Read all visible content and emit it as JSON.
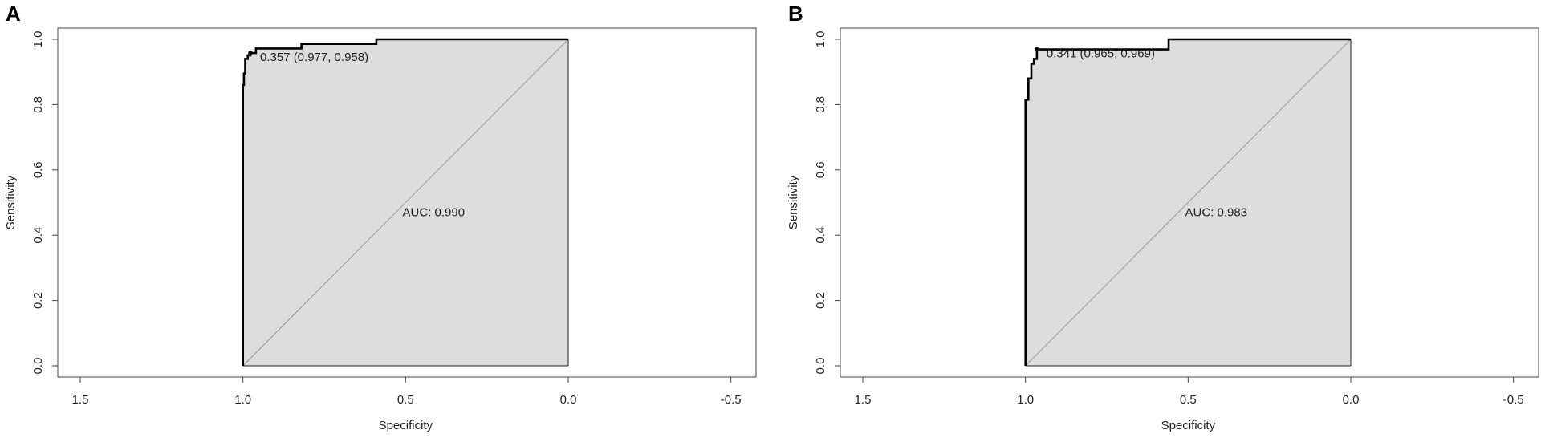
{
  "chart_data": [
    {
      "panel": "A",
      "type": "line",
      "xlabel": "Specificity",
      "ylabel": "Sensitivity",
      "xlim": [
        1.5,
        -0.5
      ],
      "ylim": [
        0,
        1
      ],
      "x_ticks": [
        1.5,
        1.0,
        0.5,
        0.0,
        -0.5
      ],
      "x_tick_labels": [
        "1.5",
        "1.0",
        "0.5",
        "0.0",
        "-0.5"
      ],
      "y_ticks": [
        0.0,
        0.2,
        0.4,
        0.6,
        0.8,
        1.0
      ],
      "y_tick_labels": [
        "0.0",
        "0.2",
        "0.4",
        "0.6",
        "0.8",
        "1.0"
      ],
      "roc_curve": {
        "specificity": [
          1.0,
          1.0,
          0.997,
          0.997,
          0.993,
          0.993,
          0.985,
          0.985,
          0.977,
          0.977,
          0.96,
          0.96,
          0.82,
          0.82,
          0.59,
          0.59,
          0.0
        ],
        "sensitivity": [
          0.0,
          0.86,
          0.86,
          0.895,
          0.895,
          0.94,
          0.94,
          0.951,
          0.951,
          0.958,
          0.958,
          0.972,
          0.972,
          0.986,
          0.986,
          1.0,
          1.0
        ]
      },
      "threshold_point": {
        "specificity": 0.977,
        "sensitivity": 0.958,
        "label": "0.357 (0.977, 0.958)"
      },
      "auc_label": "AUC: 0.990",
      "auc_label_position": [
        0.5,
        0.47
      ],
      "shading": true,
      "reference_diagonal": true
    },
    {
      "panel": "B",
      "type": "line",
      "xlabel": "Specificity",
      "ylabel": "Sensitivity",
      "xlim": [
        1.5,
        -0.5
      ],
      "ylim": [
        0,
        1
      ],
      "x_ticks": [
        1.5,
        1.0,
        0.5,
        0.0,
        -0.5
      ],
      "x_tick_labels": [
        "1.5",
        "1.0",
        "0.5",
        "0.0",
        "-0.5"
      ],
      "y_ticks": [
        0.0,
        0.2,
        0.4,
        0.6,
        0.8,
        1.0
      ],
      "y_tick_labels": [
        "0.0",
        "0.2",
        "0.4",
        "0.6",
        "0.8",
        "1.0"
      ],
      "roc_curve": {
        "specificity": [
          1.0,
          1.0,
          0.991,
          0.991,
          0.982,
          0.982,
          0.974,
          0.974,
          0.965,
          0.965,
          0.56,
          0.56,
          0.0
        ],
        "sensitivity": [
          0.0,
          0.815,
          0.815,
          0.88,
          0.88,
          0.925,
          0.925,
          0.94,
          0.94,
          0.969,
          0.969,
          1.0,
          1.0
        ]
      },
      "threshold_point": {
        "specificity": 0.965,
        "sensitivity": 0.969,
        "label": "0.341 (0.965, 0.969)"
      },
      "auc_label": "AUC: 0.983",
      "auc_label_position": [
        0.5,
        0.47
      ],
      "shading": true,
      "reference_diagonal": true
    }
  ],
  "panels": [
    {
      "letter": "A"
    },
    {
      "letter": "B"
    }
  ],
  "colors": {
    "shade": "#dddddd",
    "curve": "#000000",
    "diagonal": "#999999",
    "axis": "#444444"
  }
}
